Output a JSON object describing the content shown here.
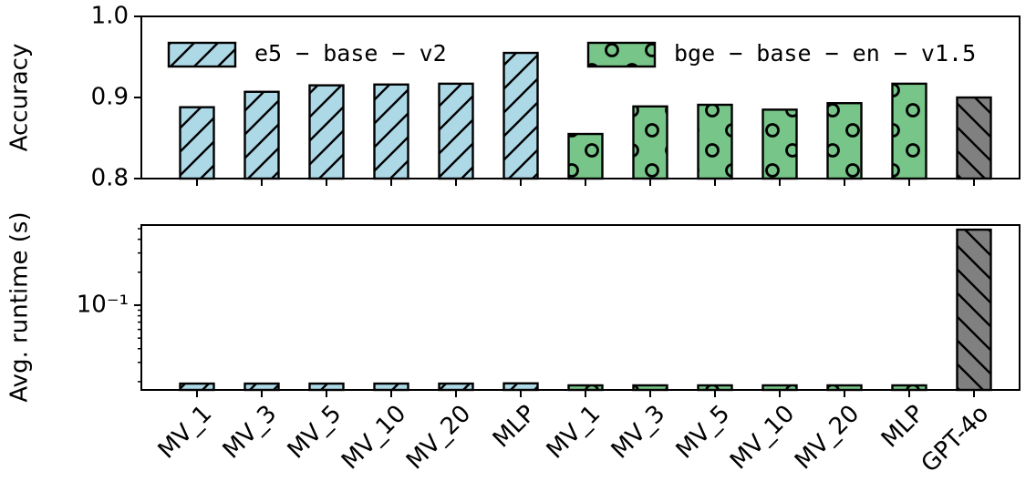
{
  "chart_data": [
    {
      "type": "bar",
      "ylabel": "Accuracy",
      "ylim": [
        0.8,
        1.0
      ],
      "yticks": [
        0.8,
        0.9,
        {
          "value": 1.0,
          "label": "1.0"
        }
      ],
      "legend": "top",
      "series": [
        {
          "name": "e5 − base − v2",
          "color": "#add8e6",
          "hatch": "slash",
          "values": [
            0.888,
            0.907,
            0.915,
            0.916,
            0.917,
            0.955,
            null,
            null,
            null,
            null,
            null,
            null,
            null
          ]
        },
        {
          "name": "bge − base − en − v1.5",
          "color": "#77c588",
          "hatch": "circle",
          "values": [
            null,
            null,
            null,
            null,
            null,
            null,
            0.855,
            0.889,
            0.891,
            0.885,
            0.893,
            0.917,
            null
          ]
        },
        {
          "color": "#808080",
          "hatch": "back",
          "values": [
            null,
            null,
            null,
            null,
            null,
            null,
            null,
            null,
            null,
            null,
            null,
            null,
            0.9
          ]
        }
      ]
    },
    {
      "type": "bar",
      "ylabel": "Avg. runtime (s)",
      "log": true,
      "categories": [
        "MV_1",
        "MV_3",
        "MV_5",
        "MV_10",
        "MV_20",
        "MLP",
        "MV_1",
        "MV_3",
        "MV_5",
        "MV_10",
        "MV_20",
        "MLP",
        "GPT-4o"
      ],
      "ylim": [
        0.0168,
        0.54
      ],
      "yticks": [
        {
          "value": 0.1,
          "label": "10⁻¹"
        }
      ],
      "series": [
        {
          "color": "#add8e6",
          "hatch": "slash",
          "values": [
            0.0192,
            0.0192,
            0.0192,
            0.0192,
            0.0192,
            0.0193,
            null,
            null,
            null,
            null,
            null,
            null,
            null
          ]
        },
        {
          "color": "#77c588",
          "hatch": "circle",
          "values": [
            null,
            null,
            null,
            null,
            null,
            null,
            0.0185,
            0.0185,
            0.0185,
            0.0185,
            0.0185,
            0.0185,
            null
          ]
        },
        {
          "color": "#808080",
          "hatch": "back",
          "values": [
            null,
            null,
            null,
            null,
            null,
            null,
            null,
            null,
            null,
            null,
            null,
            null,
            0.49
          ]
        }
      ]
    }
  ]
}
